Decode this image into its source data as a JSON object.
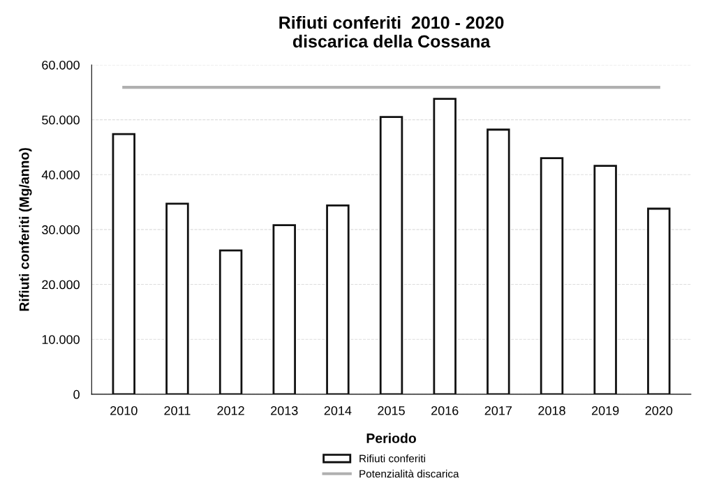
{
  "chart_data": {
    "type": "bar",
    "title": "Rifiuti conferiti  2010 - 2020\ndiscarica della Cossana",
    "xlabel": "Periodo",
    "ylabel": "Rifiuti conferiti (Mg/anno)",
    "categories": [
      "2010",
      "2011",
      "2012",
      "2013",
      "2014",
      "2015",
      "2016",
      "2017",
      "2018",
      "2019",
      "2020"
    ],
    "series": [
      {
        "name": "Rifiuti conferiti",
        "color": "#ffffff",
        "values": [
          47400,
          34700,
          26200,
          30800,
          34400,
          50500,
          53800,
          48200,
          43000,
          41600,
          33800
        ]
      },
      {
        "name": "Potenzialità discarica",
        "type": "line",
        "color": "#b0b0b0",
        "values": [
          55900,
          55900,
          55900,
          55900,
          55900,
          55900,
          55900,
          55900,
          55900,
          55900,
          55900
        ]
      }
    ],
    "ylim": [
      0,
      60000
    ],
    "yticks": [
      0,
      {
        "value": 10000,
        "label": "10.000"
      },
      {
        "value": 20000,
        "label": "20.000"
      },
      {
        "value": 30000,
        "label": "30.000"
      },
      {
        "value": 40000,
        "label": "40.000"
      },
      {
        "value": 50000,
        "label": "50.000"
      },
      {
        "value": 60000,
        "label": "60.000"
      }
    ],
    "grid": "y",
    "legend": "bottom",
    "marker": "none",
    "line_style": "solid"
  }
}
